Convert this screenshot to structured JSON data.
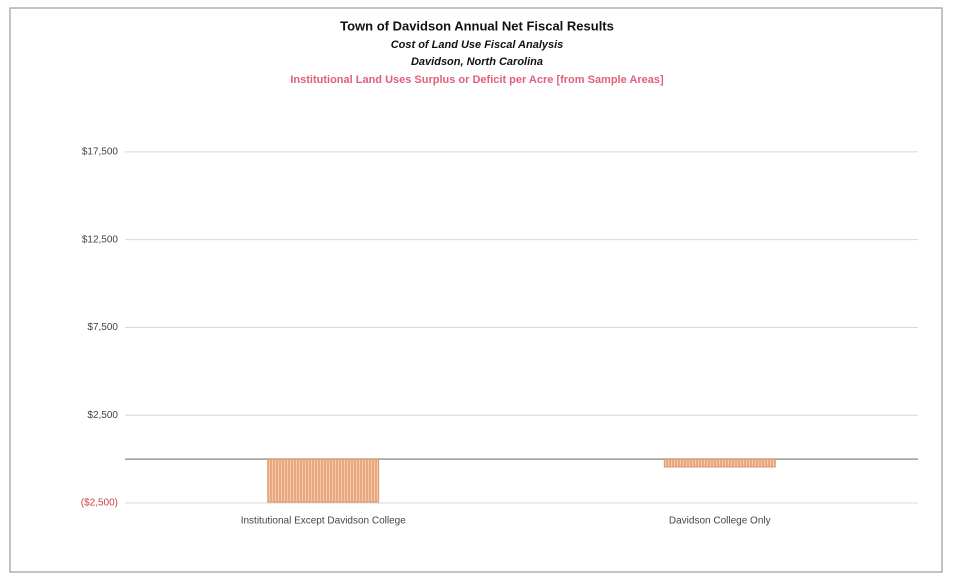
{
  "chart_data": {
    "type": "bar",
    "title": "Town of Davidson Annual Net Fiscal Results",
    "subtitle": "Cost of Land Use Fiscal Analysis",
    "subtitle2": "Davidson, North Carolina",
    "subtitle3": "Institutional Land Uses Surplus or Deficit per Acre [from Sample Areas]",
    "subtitle3_color": "#e0607a",
    "categories": [
      "Institutional Except Davidson College",
      "Davidson College Only"
    ],
    "values": [
      -2450,
      -450
    ],
    "color": "#f6c8a6",
    "edge_color": "#d98a5e",
    "ylim": [
      -2500,
      20000
    ],
    "yticks": [
      {
        "value": -2500,
        "label": "($2,500)"
      },
      {
        "value": 2500,
        "label": "$2,500"
      },
      {
        "value": 7500,
        "label": "$7,500"
      },
      {
        "value": 12500,
        "label": "$12,500"
      },
      {
        "value": 17500,
        "label": "$17,500"
      }
    ],
    "negative_tick_color": "#d0404a",
    "grid": true
  }
}
